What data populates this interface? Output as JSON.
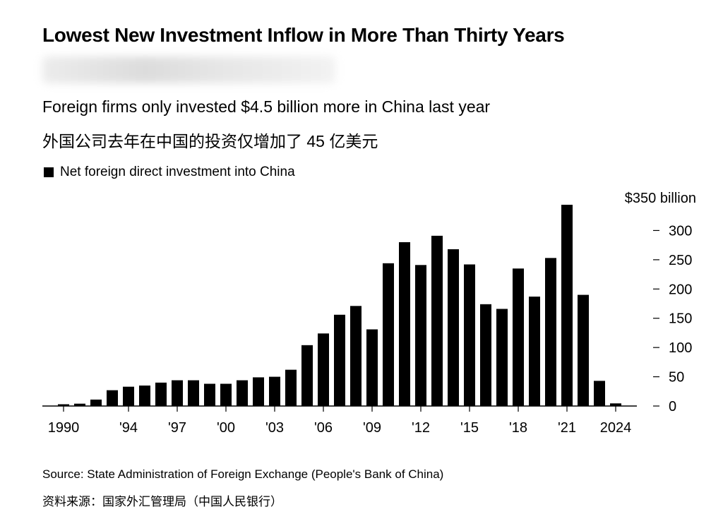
{
  "title": "Lowest New Investment Inflow in More Than Thirty Years",
  "subtitle_en": "Foreign firms only invested $4.5 billion more in China last year",
  "subtitle_cn": "外国公司去年在中国的投资仅增加了 45 亿美元",
  "source_en": "Source: State Administration of Foreign Exchange (People's Bank of China)",
  "source_cn": "资料来源：国家外汇管理局（中国人民银行）",
  "chart_data": {
    "type": "bar",
    "legend": "Net foreign direct investment into China",
    "legend_position": "top-left",
    "y_unit_label": "$350 billion",
    "ylim": [
      0,
      350
    ],
    "y_ticks": [
      0,
      50,
      100,
      150,
      200,
      250,
      300
    ],
    "x_ticks": [
      {
        "year": 1990,
        "label": "1990"
      },
      {
        "year": 1994,
        "label": "'94"
      },
      {
        "year": 1997,
        "label": "'97"
      },
      {
        "year": 2000,
        "label": "'00"
      },
      {
        "year": 2003,
        "label": "'03"
      },
      {
        "year": 2006,
        "label": "'06"
      },
      {
        "year": 2009,
        "label": "'09"
      },
      {
        "year": 2012,
        "label": "'12"
      },
      {
        "year": 2015,
        "label": "'15"
      },
      {
        "year": 2018,
        "label": "'18"
      },
      {
        "year": 2021,
        "label": "'21"
      },
      {
        "year": 2024,
        "label": "2024"
      }
    ],
    "grid": false,
    "bar_color": "#000000",
    "years": [
      1990,
      1991,
      1992,
      1993,
      1994,
      1995,
      1996,
      1997,
      1998,
      1999,
      2000,
      2001,
      2002,
      2003,
      2004,
      2005,
      2006,
      2007,
      2008,
      2009,
      2010,
      2011,
      2012,
      2013,
      2014,
      2015,
      2016,
      2017,
      2018,
      2019,
      2020,
      2021,
      2022,
      2023,
      2024
    ],
    "values": [
      3,
      4,
      11,
      27,
      33,
      35,
      40,
      44,
      44,
      38,
      38,
      44,
      49,
      50,
      62,
      104,
      124,
      156,
      171,
      131,
      244,
      280,
      241,
      291,
      268,
      242,
      174,
      166,
      235,
      187,
      253,
      344,
      190,
      43,
      4.5
    ]
  }
}
